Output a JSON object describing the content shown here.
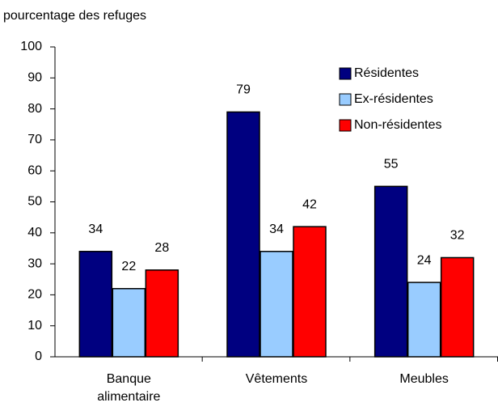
{
  "chart_data": {
    "type": "bar",
    "ylabel": "pourcentage des refuges",
    "categories": [
      "Banque alimentaire",
      "Vêtements",
      "Meubles"
    ],
    "series": [
      {
        "name": "Résidentes",
        "color": "#000080",
        "values": [
          34,
          79,
          55
        ]
      },
      {
        "name": "Ex-résidentes",
        "color": "#99ccff",
        "values": [
          22,
          34,
          24
        ]
      },
      {
        "name": "Non-résidentes",
        "color": "#ff0000",
        "values": [
          28,
          42,
          32
        ]
      }
    ],
    "ylim": [
      0,
      100
    ],
    "yticks": [
      0,
      10,
      20,
      30,
      40,
      50,
      60,
      70,
      80,
      90,
      100
    ],
    "legend": "top-right",
    "data_labels": true
  }
}
